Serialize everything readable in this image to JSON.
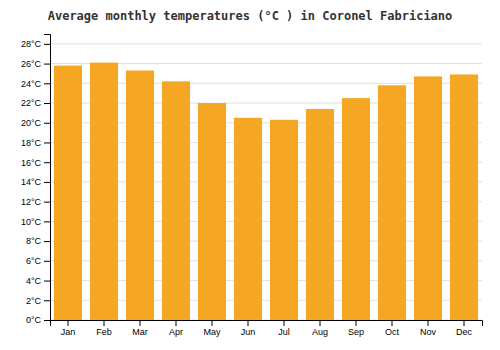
{
  "chart_data": {
    "type": "bar",
    "title": "Average monthly temperatures (°C ) in Coronel Fabriciano",
    "categories": [
      "Jan",
      "Feb",
      "Mar",
      "Apr",
      "May",
      "Jun",
      "Jul",
      "Aug",
      "Sep",
      "Oct",
      "Nov",
      "Dec"
    ],
    "values": [
      25.8,
      26.1,
      25.3,
      24.2,
      22.0,
      20.5,
      20.3,
      21.4,
      22.5,
      23.8,
      24.7,
      24.9
    ],
    "color": "#F5A623",
    "ylim": [
      0,
      29
    ],
    "yticks": [
      {
        "value": 0,
        "label": "0°C"
      },
      {
        "value": 2,
        "label": "2°C"
      },
      {
        "value": 4,
        "label": "4°C"
      },
      {
        "value": 6,
        "label": "6°C"
      },
      {
        "value": 8,
        "label": "8°C"
      },
      {
        "value": 10,
        "label": "10°C"
      },
      {
        "value": 12,
        "label": "12°C"
      },
      {
        "value": 14,
        "label": "14°C"
      },
      {
        "value": 16,
        "label": "16°C"
      },
      {
        "value": 18,
        "label": "18°C"
      },
      {
        "value": 20,
        "label": "20°C"
      },
      {
        "value": 22,
        "label": "22°C"
      },
      {
        "value": 24,
        "label": "24°C"
      },
      {
        "value": 26,
        "label": "26°C"
      },
      {
        "value": 28,
        "label": "28°C"
      }
    ],
    "grid": true
  }
}
